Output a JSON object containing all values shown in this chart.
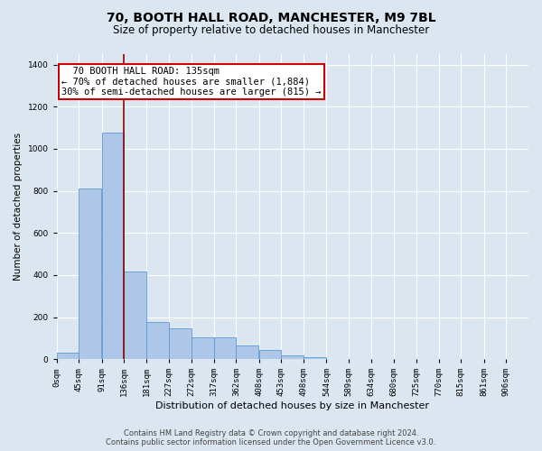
{
  "title": "70, BOOTH HALL ROAD, MANCHESTER, M9 7BL",
  "subtitle": "Size of property relative to detached houses in Manchester",
  "xlabel": "Distribution of detached houses by size in Manchester",
  "ylabel": "Number of detached properties",
  "footer_line1": "Contains HM Land Registry data © Crown copyright and database right 2024.",
  "footer_line2": "Contains public sector information licensed under the Open Government Licence v3.0.",
  "bar_left_edges": [
    0,
    45,
    91,
    136,
    181,
    227,
    272,
    317,
    362,
    408,
    453,
    498,
    544,
    589,
    634,
    680,
    725,
    770,
    815,
    861
  ],
  "bar_heights": [
    30,
    810,
    1075,
    415,
    175,
    145,
    105,
    105,
    65,
    45,
    20,
    8,
    0,
    0,
    0,
    0,
    0,
    0,
    0,
    0
  ],
  "bin_width": 45,
  "bar_color": "#aec6e8",
  "bar_edge_color": "#5b9bd5",
  "bg_color": "#dce6f1",
  "plot_bg_color": "#dce6f1",
  "grid_color": "#ffffff",
  "vline_x": 135,
  "vline_color": "#8b0000",
  "annotation_text": "  70 BOOTH HALL ROAD: 135sqm\n← 70% of detached houses are smaller (1,884)\n30% of semi-detached houses are larger (815) →",
  "annotation_box_color": "#ffffff",
  "annotation_box_edge": "#cc0000",
  "ylim": [
    0,
    1450
  ],
  "yticks": [
    0,
    200,
    400,
    600,
    800,
    1000,
    1200,
    1400
  ],
  "xtick_labels": [
    "0sqm",
    "45sqm",
    "91sqm",
    "136sqm",
    "181sqm",
    "227sqm",
    "272sqm",
    "317sqm",
    "362sqm",
    "408sqm",
    "453sqm",
    "498sqm",
    "544sqm",
    "589sqm",
    "634sqm",
    "680sqm",
    "725sqm",
    "770sqm",
    "815sqm",
    "861sqm",
    "906sqm"
  ],
  "title_fontsize": 10,
  "subtitle_fontsize": 8.5,
  "xlabel_fontsize": 8,
  "ylabel_fontsize": 7.5,
  "tick_fontsize": 6.5,
  "annotation_fontsize": 7.5,
  "xlim_max": 951
}
